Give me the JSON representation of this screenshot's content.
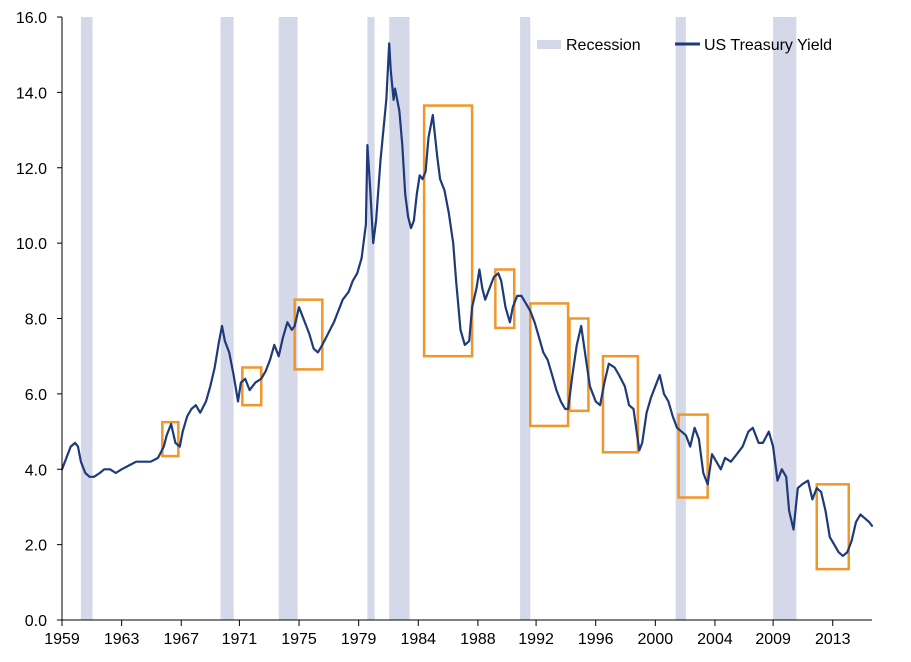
{
  "chart_data": {
    "type": "line",
    "title": "",
    "xlabel": "",
    "ylabel": "",
    "xlim": [
      1959.0,
      2014.7
    ],
    "ylim": [
      0,
      16
    ],
    "grid": false,
    "legend_position": "top-right",
    "y_ticks": [
      "0.0",
      "2.0",
      "4.0",
      "6.0",
      "8.0",
      "10.0",
      "12.0",
      "14.0",
      "16.0"
    ],
    "x_ticks": [
      {
        "label": "1959",
        "x": 1959.0
      },
      {
        "label": "1963",
        "x": 1963.1
      },
      {
        "label": "1967",
        "x": 1967.2
      },
      {
        "label": "1971",
        "x": 1971.2
      },
      {
        "label": "1975",
        "x": 1975.3
      },
      {
        "label": "1979",
        "x": 1979.4
      },
      {
        "label": "1984",
        "x": 1983.5
      },
      {
        "label": "1988",
        "x": 1987.6
      },
      {
        "label": "1992",
        "x": 1991.6
      },
      {
        "label": "1996",
        "x": 1995.7
      },
      {
        "label": "2000",
        "x": 1999.8
      },
      {
        "label": "2004",
        "x": 2003.9
      },
      {
        "label": "2009",
        "x": 2007.9
      },
      {
        "label": "2013",
        "x": 2012.0
      }
    ],
    "legend": {
      "recession": "Recession",
      "yield": "US Treasury Yield"
    },
    "colors": {
      "line": "#1f3a7a",
      "recession": "#d5d8e8",
      "highlight": "#f0962a",
      "axis": "#000000"
    },
    "recessions": [
      [
        1960.3,
        1961.1
      ],
      [
        1969.9,
        1970.8
      ],
      [
        1973.9,
        1975.2
      ],
      [
        1980.0,
        1980.5
      ],
      [
        1981.5,
        1982.9
      ],
      [
        1990.5,
        1991.2
      ],
      [
        2001.2,
        2001.9
      ],
      [
        2007.9,
        2009.5
      ]
    ],
    "series": [
      {
        "name": "US Treasury Yield",
        "x": [
          1959.0,
          1959.3,
          1959.6,
          1959.9,
          1960.1,
          1960.3,
          1960.6,
          1960.9,
          1961.2,
          1961.6,
          1961.9,
          1962.3,
          1962.7,
          1963.1,
          1963.6,
          1964.1,
          1964.6,
          1965.1,
          1965.6,
          1966.0,
          1966.2,
          1966.5,
          1966.8,
          1967.1,
          1967.3,
          1967.6,
          1967.9,
          1968.2,
          1968.5,
          1968.9,
          1969.2,
          1969.5,
          1969.8,
          1970.0,
          1970.2,
          1970.5,
          1970.8,
          1971.1,
          1971.3,
          1971.6,
          1971.9,
          1972.3,
          1972.7,
          1973.0,
          1973.3,
          1973.6,
          1973.9,
          1974.2,
          1974.5,
          1974.8,
          1975.0,
          1975.3,
          1975.6,
          1976.0,
          1976.3,
          1976.6,
          1976.9,
          1977.3,
          1977.7,
          1978.0,
          1978.3,
          1978.7,
          1979.0,
          1979.3,
          1979.6,
          1979.9,
          1980.0,
          1980.2,
          1980.4,
          1980.6,
          1980.9,
          1981.1,
          1981.3,
          1981.5,
          1981.6,
          1981.8,
          1981.9,
          1982.0,
          1982.2,
          1982.4,
          1982.6,
          1982.8,
          1983.0,
          1983.2,
          1983.4,
          1983.6,
          1983.8,
          1984.0,
          1984.2,
          1984.5,
          1984.8,
          1985.0,
          1985.3,
          1985.6,
          1985.9,
          1986.1,
          1986.4,
          1986.7,
          1987.0,
          1987.2,
          1987.5,
          1987.7,
          1987.9,
          1988.1,
          1988.4,
          1988.7,
          1989.0,
          1989.2,
          1989.5,
          1989.8,
          1990.0,
          1990.3,
          1990.6,
          1990.9,
          1991.2,
          1991.5,
          1991.8,
          1992.1,
          1992.4,
          1992.7,
          1993.0,
          1993.3,
          1993.6,
          1993.8,
          1994.1,
          1994.4,
          1994.7,
          1995.0,
          1995.3,
          1995.7,
          1996.0,
          1996.3,
          1996.6,
          1997.0,
          1997.3,
          1997.7,
          1998.0,
          1998.3,
          1998.7,
          1998.9,
          1999.2,
          1999.5,
          1999.8,
          2000.1,
          2000.4,
          2000.7,
          2001.0,
          2001.3,
          2001.6,
          2001.9,
          2002.2,
          2002.5,
          2002.8,
          2003.1,
          2003.4,
          2003.7,
          2004.0,
          2004.3,
          2004.6,
          2005.0,
          2005.4,
          2005.8,
          2006.2,
          2006.5,
          2006.9,
          2007.2,
          2007.6,
          2007.9,
          2008.2,
          2008.5,
          2008.8,
          2009.0,
          2009.3,
          2009.6,
          2009.9,
          2010.3,
          2010.6,
          2010.9,
          2011.2,
          2011.5,
          2011.8,
          2012.1,
          2012.4,
          2012.7,
          2013.0,
          2013.3,
          2013.6,
          2013.9,
          2014.2,
          2014.5,
          2014.7
        ],
        "values": [
          4.0,
          4.3,
          4.6,
          4.7,
          4.6,
          4.2,
          3.9,
          3.8,
          3.8,
          3.9,
          4.0,
          4.0,
          3.9,
          4.0,
          4.1,
          4.2,
          4.2,
          4.2,
          4.3,
          4.6,
          4.9,
          5.2,
          4.7,
          4.6,
          5.0,
          5.4,
          5.6,
          5.7,
          5.5,
          5.8,
          6.2,
          6.7,
          7.4,
          7.8,
          7.4,
          7.1,
          6.5,
          5.8,
          6.3,
          6.4,
          6.1,
          6.3,
          6.4,
          6.6,
          6.9,
          7.3,
          7.0,
          7.5,
          7.9,
          7.7,
          7.8,
          8.3,
          8.0,
          7.6,
          7.2,
          7.1,
          7.3,
          7.6,
          7.9,
          8.2,
          8.5,
          8.7,
          9.0,
          9.2,
          9.6,
          10.5,
          12.6,
          11.4,
          10.0,
          10.6,
          12.2,
          13.0,
          13.8,
          15.3,
          14.6,
          13.8,
          14.1,
          13.9,
          13.5,
          12.6,
          11.3,
          10.7,
          10.4,
          10.6,
          11.3,
          11.8,
          11.7,
          11.9,
          12.8,
          13.4,
          12.3,
          11.7,
          11.4,
          10.8,
          10.0,
          9.0,
          7.7,
          7.3,
          7.4,
          8.3,
          8.8,
          9.3,
          8.8,
          8.5,
          8.8,
          9.1,
          9.2,
          9.0,
          8.3,
          7.9,
          8.3,
          8.6,
          8.6,
          8.4,
          8.2,
          7.9,
          7.5,
          7.1,
          6.9,
          6.5,
          6.1,
          5.8,
          5.6,
          5.6,
          6.5,
          7.3,
          7.8,
          7.0,
          6.2,
          5.8,
          5.7,
          6.3,
          6.8,
          6.7,
          6.5,
          6.2,
          5.7,
          5.6,
          4.5,
          4.7,
          5.5,
          5.9,
          6.2,
          6.5,
          6.0,
          5.8,
          5.4,
          5.1,
          5.0,
          4.9,
          4.6,
          5.1,
          4.8,
          3.9,
          3.6,
          4.4,
          4.2,
          4.0,
          4.3,
          4.2,
          4.4,
          4.6,
          5.0,
          5.1,
          4.7,
          4.7,
          5.0,
          4.6,
          3.7,
          4.0,
          3.8,
          2.9,
          2.4,
          3.5,
          3.6,
          3.7,
          3.2,
          3.5,
          3.4,
          2.9,
          2.2,
          2.0,
          1.8,
          1.7,
          1.8,
          2.1,
          2.6,
          2.8,
          2.7,
          2.6,
          2.5
        ]
      }
    ],
    "highlights": [
      {
        "x": [
          1965.9,
          1967.0
        ],
        "y": [
          4.35,
          5.25
        ]
      },
      {
        "x": [
          1971.4,
          1972.7
        ],
        "y": [
          5.7,
          6.7
        ]
      },
      {
        "x": [
          1975.0,
          1976.9
        ],
        "y": [
          6.65,
          8.5
        ]
      },
      {
        "x": [
          1983.9,
          1987.2
        ],
        "y": [
          7.0,
          13.65
        ]
      },
      {
        "x": [
          1988.8,
          1990.1
        ],
        "y": [
          7.75,
          9.3
        ]
      },
      {
        "x": [
          1991.2,
          1993.8
        ],
        "y": [
          5.15,
          8.4
        ]
      },
      {
        "x": [
          1993.9,
          1995.2
        ],
        "y": [
          5.55,
          8.0
        ]
      },
      {
        "x": [
          1996.2,
          1998.6
        ],
        "y": [
          4.45,
          7.0
        ]
      },
      {
        "x": [
          2001.4,
          2003.4
        ],
        "y": [
          3.25,
          5.45
        ]
      },
      {
        "x": [
          2010.9,
          2013.1
        ],
        "y": [
          1.35,
          3.6
        ]
      }
    ]
  }
}
